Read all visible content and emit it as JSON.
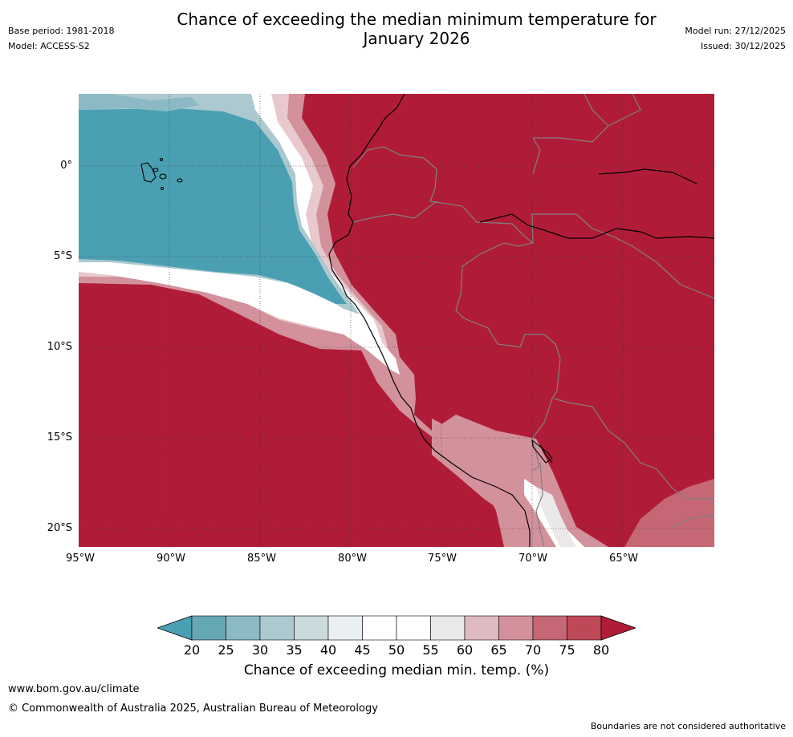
{
  "header": {
    "title_line1": "Chance of exceeding the median minimum temperature for",
    "title_line2": "January 2026",
    "base_period": "Base period: 1981-2018",
    "model": "Model: ACCESS-S2",
    "model_run": "Model run: 27/12/2025",
    "issued": "Issued: 30/12/2025"
  },
  "map": {
    "lat_labels": [
      "0°",
      "5°S",
      "10°S",
      "15°S",
      "20°S"
    ],
    "lon_labels": [
      "95°W",
      "90°W",
      "85°W",
      "80°W",
      "75°W",
      "70°W",
      "65°W"
    ],
    "region": "Western South America and eastern Pacific",
    "colors": {
      "high": "#b01c38",
      "low": "#4aa0b2",
      "mid": "#ffffff",
      "country_border": "#808080",
      "coastline": "#000000"
    }
  },
  "colorbar": {
    "ticks": [
      "20",
      "25",
      "30",
      "35",
      "40",
      "45",
      "50",
      "55",
      "60",
      "65",
      "70",
      "75",
      "80"
    ],
    "colors": [
      "#66a7b6",
      "#8bbac5",
      "#abc9ce",
      "#cbdadc",
      "#eaf0f2",
      "#ffffff",
      "#ffffff",
      "#eae8e9",
      "#dfbac0",
      "#d3919b",
      "#c56774",
      "#bf4858"
    ],
    "under_color": "#4aa0b2",
    "over_color": "#b01c38",
    "label": "Chance of exceeding median min. temp. (%)"
  },
  "footer": {
    "url": "www.bom.gov.au/climate",
    "copyright": "© Commonwealth of Australia 2025, Australian Bureau of Meteorology",
    "disclaimer": "Boundaries are not considered authoritative"
  }
}
